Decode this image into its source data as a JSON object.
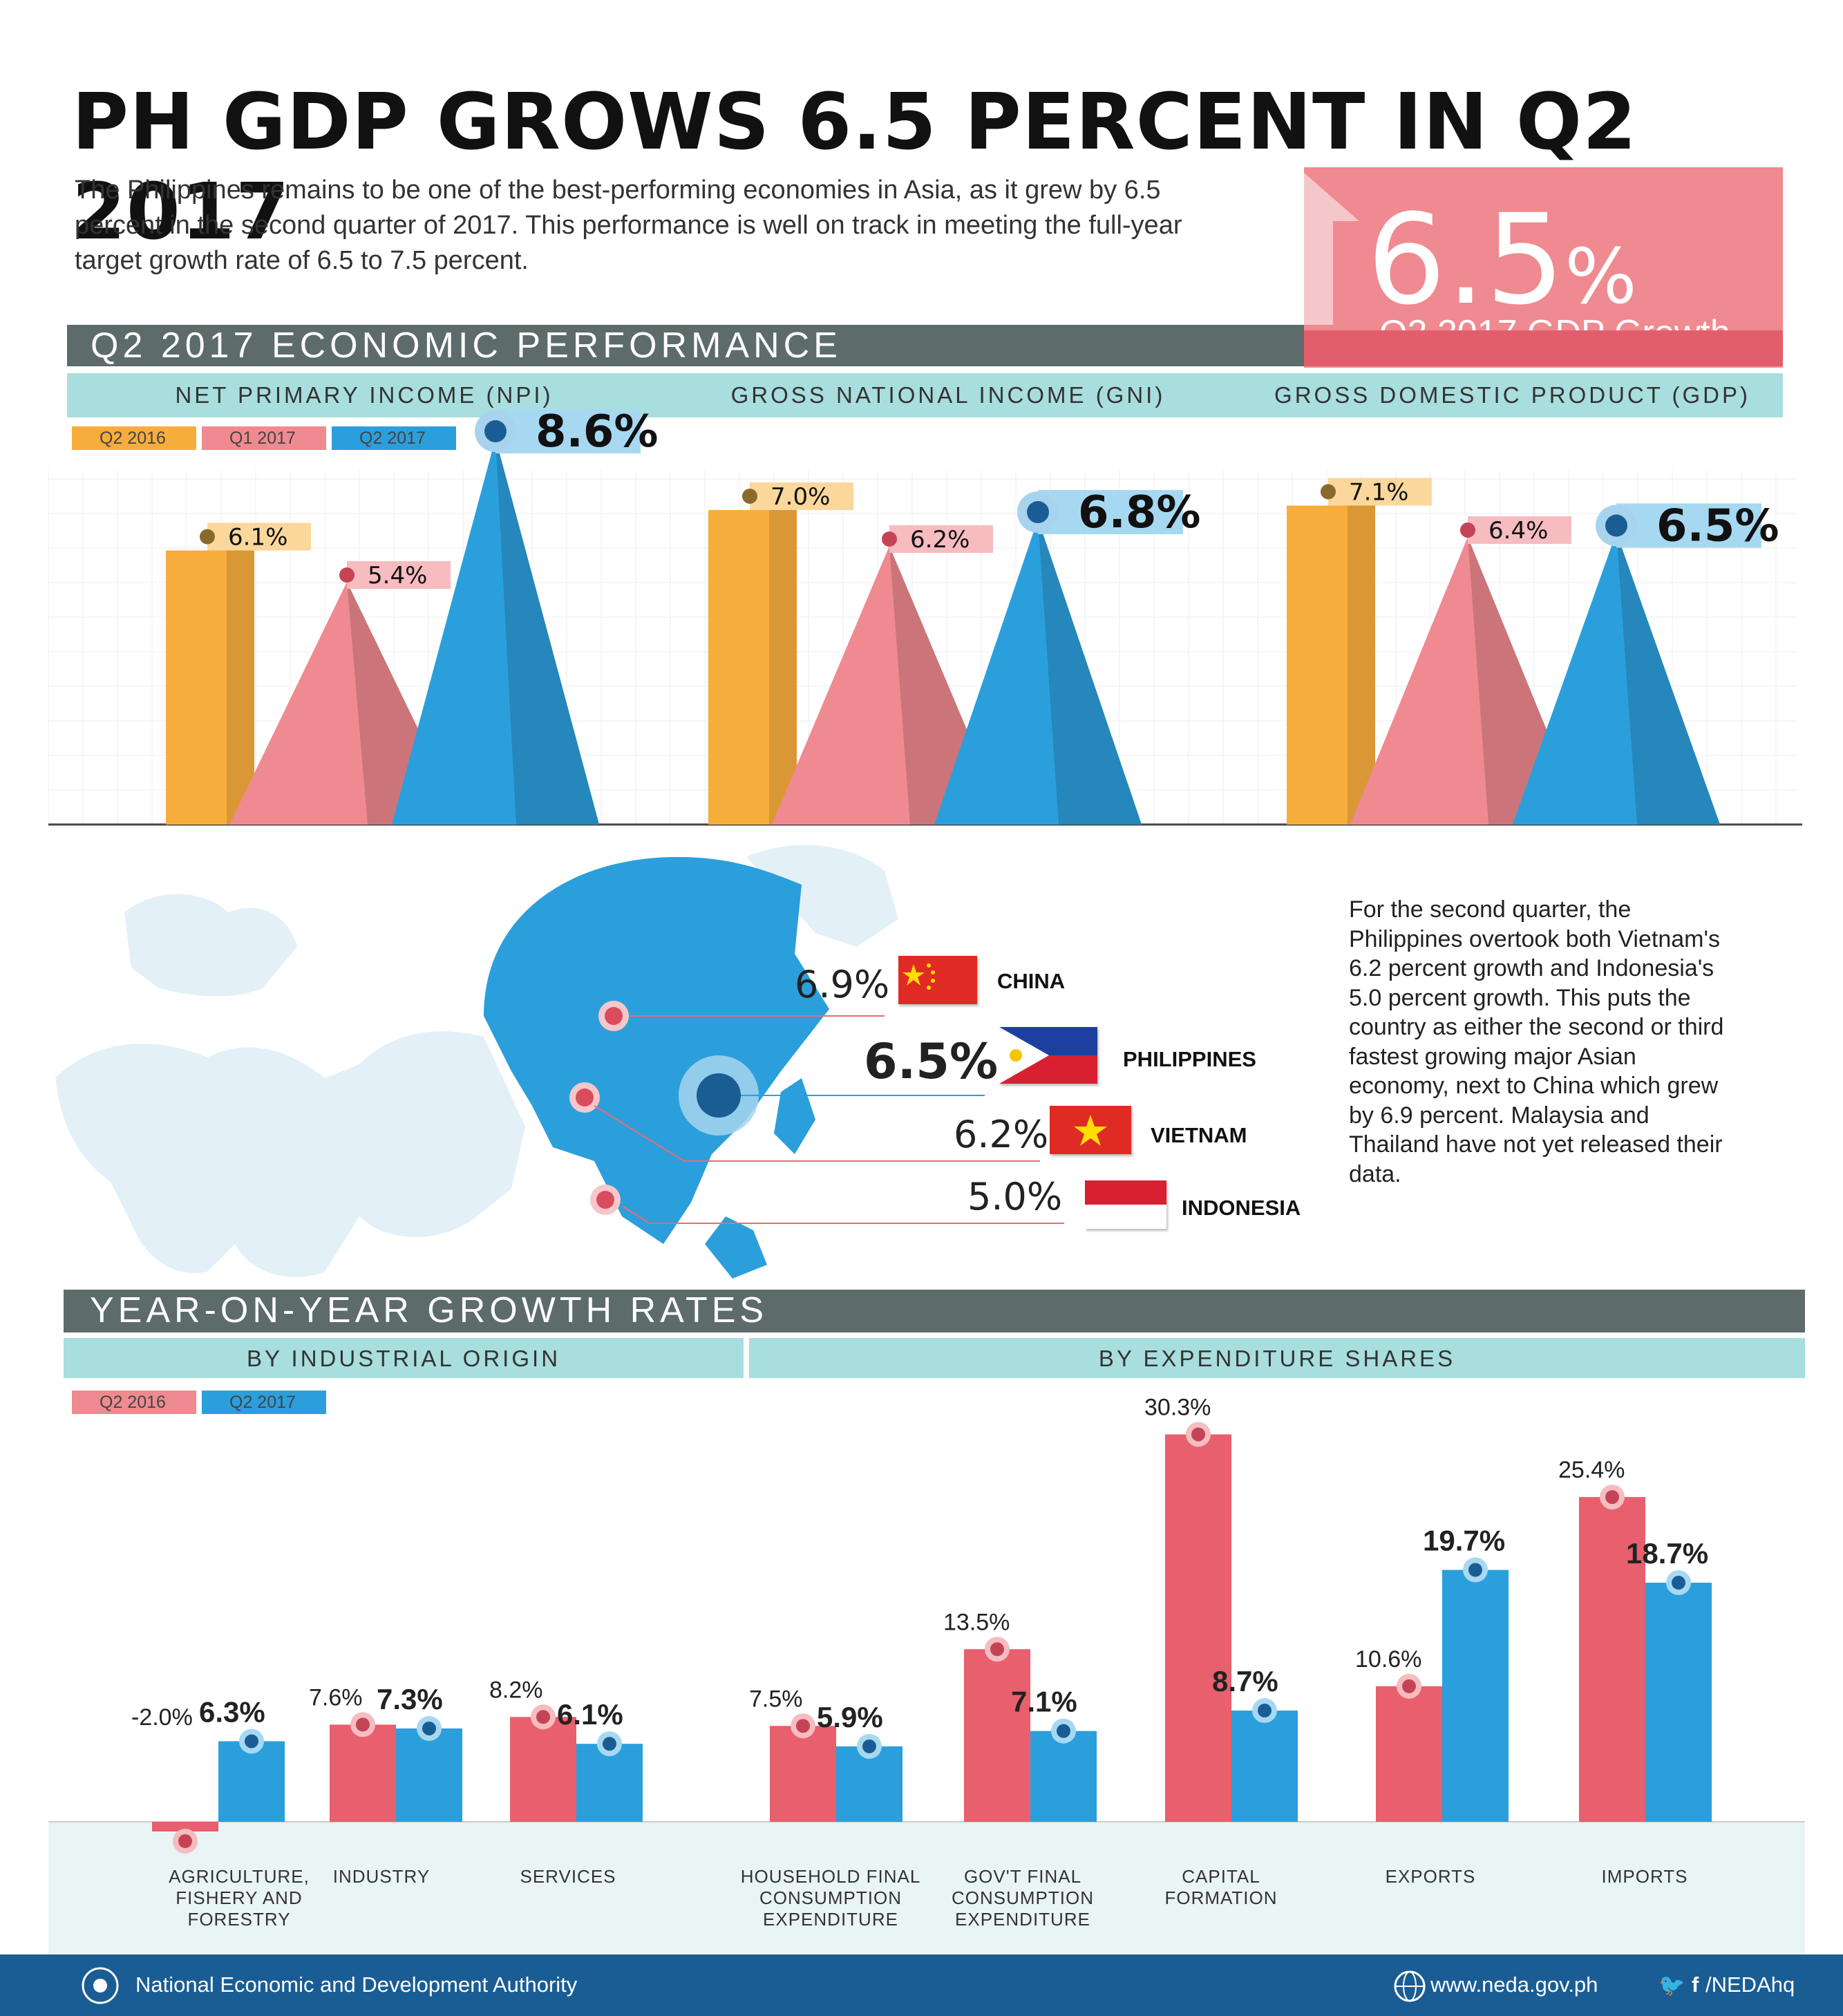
{
  "title": "PH GDP GROWS 6.5 PERCENT IN Q2 2017",
  "intro": "The Philippines remains to be one of the best-performing economies in Asia, as it grew by 6.5 percent in the second quarter of 2017. This performance is well on track in meeting the full-year target growth rate of 6.5 to 7.5 percent.",
  "hero": {
    "value": "6.5",
    "unit": "%",
    "caption": "Q2 2017 GDP Growth"
  },
  "colors": {
    "q2_2016": "#f7ad3c",
    "q1_2017": "#e96b76",
    "q2_2017": "#2b9fdc",
    "section": "#5e6b6b",
    "subheader": "#a8dedd",
    "footer": "#1a5d94",
    "hero": "#ef8a90"
  },
  "section1": {
    "title": "Q2 2017 ECONOMIC PERFORMANCE",
    "legend": [
      "Q2 2016",
      "Q1 2017",
      "Q2 2017"
    ]
  },
  "chart_data": [
    {
      "type": "bar",
      "categories": [
        "NET PRIMARY INCOME (NPI)",
        "GROSS NATIONAL INCOME (GNI)",
        "GROSS DOMESTIC PRODUCT (GDP)"
      ],
      "series": [
        {
          "name": "Q2 2016",
          "values": [
            6.1,
            7.0,
            7.1
          ],
          "labels": [
            "6.1%",
            "7.0%",
            "7.1%"
          ]
        },
        {
          "name": "Q1 2017",
          "values": [
            5.4,
            6.2,
            6.4
          ],
          "labels": [
            "5.4%",
            "6.2%",
            "6.4%"
          ]
        },
        {
          "name": "Q2 2017",
          "values": [
            8.6,
            6.8,
            6.5
          ],
          "labels": [
            "8.6%",
            "6.8%",
            "6.5%"
          ]
        }
      ]
    },
    {
      "type": "bar",
      "categories": [
        "CHINA",
        "PHILIPPINES",
        "VIETNAM",
        "INDONESIA"
      ],
      "values": [
        6.9,
        6.5,
        6.2,
        5.0
      ],
      "labels": [
        "6.9%",
        "6.5%",
        "6.2%",
        "5.0%"
      ]
    },
    {
      "type": "bar",
      "groups": [
        "BY INDUSTRIAL ORIGIN",
        "BY EXPENDITURE SHARES"
      ],
      "categories": [
        "AGRICULTURE, FISHERY AND FORESTRY",
        "INDUSTRY",
        "SERVICES",
        "HOUSEHOLD FINAL CONSUMPTION EXPENDITURE",
        "GOV'T FINAL CONSUMPTION EXPENDITURE",
        "CAPITAL FORMATION",
        "EXPORTS",
        "IMPORTS"
      ],
      "series": [
        {
          "name": "Q2 2016",
          "values": [
            -2.0,
            7.6,
            8.2,
            7.5,
            13.5,
            30.3,
            10.6,
            25.4
          ],
          "labels": [
            "-2.0%",
            "7.6%",
            "8.2%",
            "7.5%",
            "13.5%",
            "30.3%",
            "10.6%",
            "25.4%"
          ]
        },
        {
          "name": "Q2 2017",
          "values": [
            6.3,
            7.3,
            6.1,
            5.9,
            7.1,
            8.7,
            19.7,
            18.7
          ],
          "labels": [
            "6.3%",
            "7.3%",
            "6.1%",
            "5.9%",
            "7.1%",
            "8.7%",
            "19.7%",
            "18.7%"
          ]
        }
      ]
    }
  ],
  "side_text": "For the second quarter, the Philippines overtook both Vietnam's 6.2 percent growth and Indonesia's 5.0 percent growth. This puts the country as either the second or third fastest growing major Asian economy, next to China which grew by 6.9 percent. Malaysia and Thailand have not yet released their data.",
  "section2": {
    "title": "YEAR-ON-YEAR GROWTH RATES",
    "sub_left": "BY INDUSTRIAL ORIGIN",
    "sub_right": "BY EXPENDITURE SHARES",
    "legend": [
      "Q2 2016",
      "Q2 2017"
    ]
  },
  "footer": {
    "org": "National Economic and Development Authority",
    "site": "www.neda.gov.ph",
    "social": "/NEDAhq",
    "social_icons": "twitter-icon facebook-icon"
  }
}
